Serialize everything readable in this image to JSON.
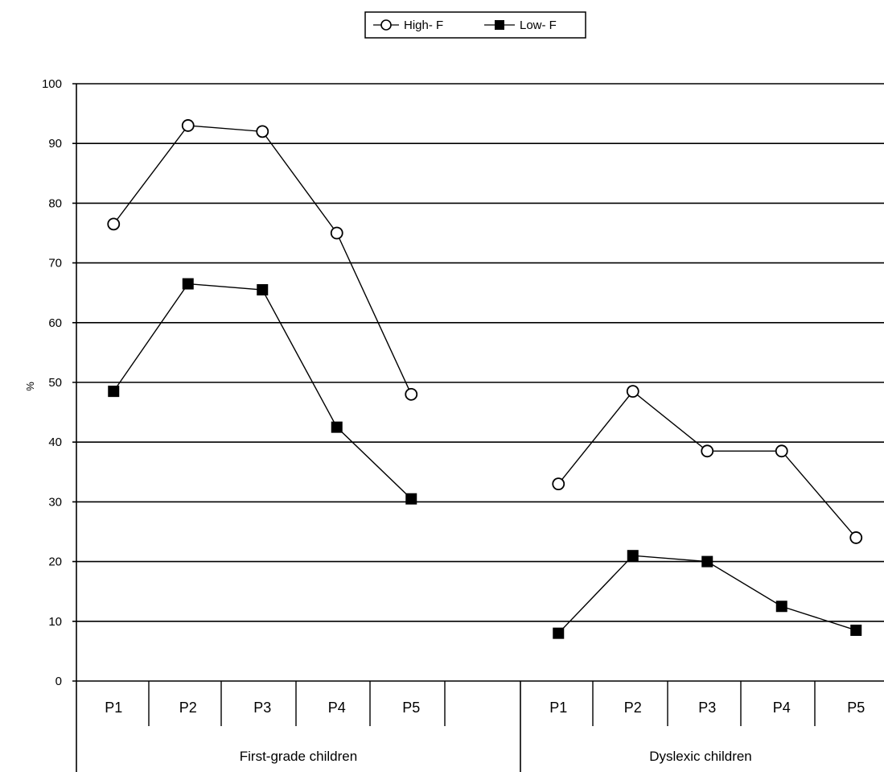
{
  "chart_data": {
    "type": "line",
    "ylabel": "%",
    "ylim": [
      0,
      100
    ],
    "yticks": [
      0,
      10,
      20,
      30,
      40,
      50,
      60,
      70,
      80,
      90,
      100
    ],
    "grid": "horizontal",
    "legend_position": "top-center",
    "groups": [
      {
        "label": "First-grade children",
        "categories": [
          "P1",
          "P2",
          "P3",
          "P4",
          "P5"
        ]
      },
      {
        "label": "Dyslexic children",
        "categories": [
          "P1",
          "P2",
          "P3",
          "P4",
          "P5"
        ]
      }
    ],
    "series": [
      {
        "name": "High- F",
        "marker": "open-circle",
        "color": "#000000",
        "values": [
          [
            76.5,
            93,
            92,
            75,
            48
          ],
          [
            33,
            48.5,
            38.5,
            38.5,
            24
          ]
        ]
      },
      {
        "name": "Low- F",
        "marker": "filled-square",
        "color": "#000000",
        "values": [
          [
            48.5,
            66.5,
            65.5,
            42.5,
            30.5
          ],
          [
            8,
            21,
            20,
            12.5,
            8.5
          ]
        ]
      }
    ]
  }
}
